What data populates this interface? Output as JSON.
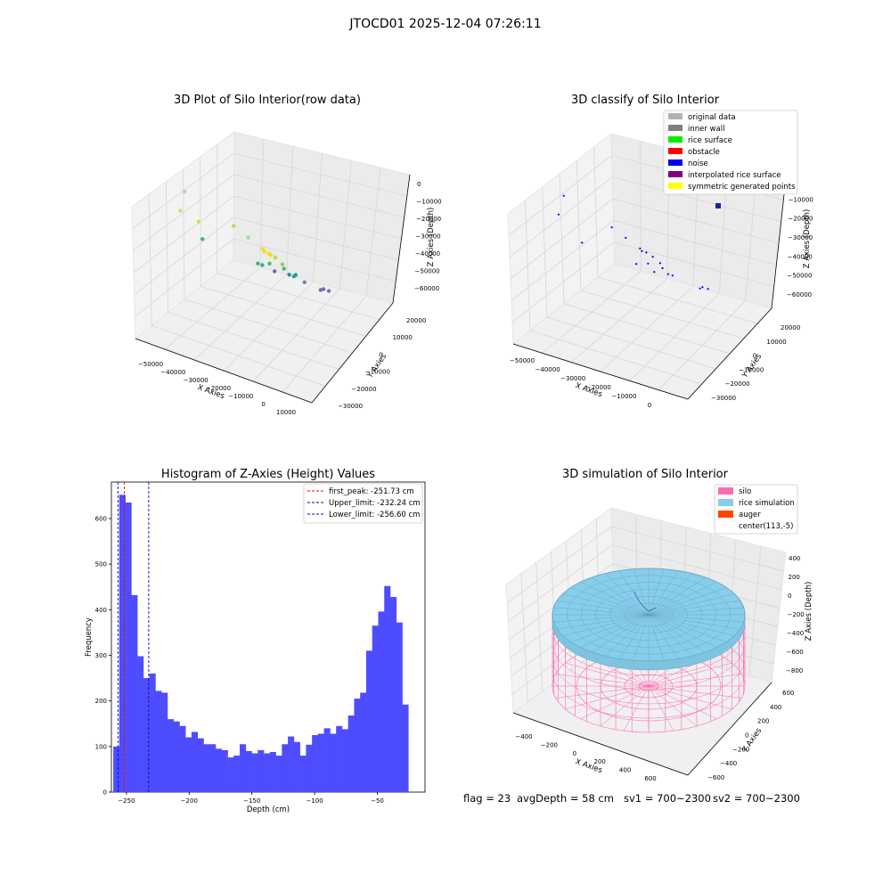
{
  "suptitle": "JTOCD01 2025-12-04 07:26:11",
  "footer": {
    "flag": "flag = 23",
    "avg_depth": "avgDepth = 58 cm",
    "sv1": "sv1 = 700~2300",
    "sv2": "sv2 = 700~2300"
  },
  "chart_data": [
    {
      "type": "scatter",
      "title": "3D Plot of Silo Interior(row data)",
      "xlabel": "X Axies",
      "ylabel": "Y Axies",
      "zlabel": "Z Axies (Depth)",
      "x_ticks": [
        "−50000",
        "−40000",
        "−30000",
        "−20000",
        "−10000",
        "0",
        "10000"
      ],
      "y_ticks": [
        "−30000",
        "−20000",
        "−10000",
        "0",
        "10000",
        "20000"
      ],
      "z_ticks": [
        "0",
        "−10000",
        "−20000",
        "−30000",
        "−40000",
        "−50000",
        "−60000"
      ],
      "colormap": "viridis",
      "points": [
        {
          "x": -52000,
          "y": 2000,
          "z": -8000,
          "color": "#a8dca0"
        },
        {
          "x": -45000,
          "y": 15000,
          "z": -5000,
          "color": "#cde35a"
        },
        {
          "x": -30000,
          "y": 8000,
          "z": -10000,
          "color": "#b5de4c"
        },
        {
          "x": -35000,
          "y": 20000,
          "z": -2000,
          "color": "#cfe23c"
        },
        {
          "x": -20000,
          "y": 15000,
          "z": -6000,
          "color": "#9fda9a"
        },
        {
          "x": -14000,
          "y": 16000,
          "z": -8000,
          "color": "#f0e21c"
        },
        {
          "x": -14000,
          "y": 15000,
          "z": -10000,
          "color": "#f5e11a"
        },
        {
          "x": -13000,
          "y": 14000,
          "z": -11000,
          "color": "#f2e51d"
        },
        {
          "x": -13000,
          "y": 13000,
          "z": -12500,
          "color": "#e8e31f"
        },
        {
          "x": -12000,
          "y": 12000,
          "z": -14000,
          "color": "#bddf26"
        },
        {
          "x": -12000,
          "y": 8000,
          "z": -20000,
          "color": "#86d549"
        },
        {
          "x": -50000,
          "y": -5000,
          "z": -35000,
          "color": "#3fb97a"
        },
        {
          "x": -25000,
          "y": 2000,
          "z": -30000,
          "color": "#3db77c"
        },
        {
          "x": -24000,
          "y": 1000,
          "z": -31000,
          "color": "#36b37d"
        },
        {
          "x": -22000,
          "y": 0,
          "z": -30000,
          "color": "#48bf70"
        },
        {
          "x": -18000,
          "y": -2000,
          "z": -32000,
          "color": "#40bb75"
        },
        {
          "x": -17000,
          "y": -6000,
          "z": -38000,
          "color": "#22a884"
        },
        {
          "x": -17000,
          "y": -7000,
          "z": -38000,
          "color": "#1f9f88"
        },
        {
          "x": -20000,
          "y": -8000,
          "z": -40000,
          "color": "#21908d"
        },
        {
          "x": -15000,
          "y": -9000,
          "z": -42000,
          "color": "#6a82b8"
        },
        {
          "x": -30000,
          "y": -15000,
          "z": -48000,
          "color": "#6e6bb0"
        },
        {
          "x": -10000,
          "y": -12000,
          "z": -45000,
          "color": "#6a6fb2"
        },
        {
          "x": -10000,
          "y": -15000,
          "z": -48000,
          "color": "#7d74b0"
        },
        {
          "x": -15000,
          "y": -18000,
          "z": -52000,
          "color": "#8a62a8"
        }
      ]
    },
    {
      "type": "scatter",
      "title": "3D classify of Silo Interior",
      "xlabel": "X Axies",
      "ylabel": "Y Axies",
      "zlabel": "Z Axies (Depth)",
      "x_ticks": [
        "−50000",
        "−40000",
        "−30000",
        "−20000",
        "−10000",
        "0"
      ],
      "y_ticks": [
        "−30000",
        "−20000",
        "−10000",
        "0",
        "10000",
        "20000"
      ],
      "z_ticks": [
        "0",
        "−10000",
        "−20000",
        "−30000",
        "−40000",
        "−50000",
        "−60000"
      ],
      "legend": [
        {
          "label": "original data",
          "color": "#b3b3b3"
        },
        {
          "label": "inner wall",
          "color": "#808080"
        },
        {
          "label": "rice surface",
          "color": "#00ee00"
        },
        {
          "label": "obstacle",
          "color": "#ff0000"
        },
        {
          "label": "noise",
          "color": "#0000ee"
        },
        {
          "label": "interpolated rice surface",
          "color": "#800080"
        },
        {
          "label": "symmetric generated points",
          "color": "#ffff00"
        }
      ],
      "points_color": "#0000ee",
      "points": [
        {
          "x": -52000,
          "y": 2000,
          "z": -8000
        },
        {
          "x": -45000,
          "y": 15000,
          "z": -5000
        },
        {
          "x": -30000,
          "y": 8000,
          "z": -10000
        },
        {
          "x": -20000,
          "y": 15000,
          "z": -6000
        },
        {
          "x": -14000,
          "y": 16000,
          "z": -8000
        },
        {
          "x": -14000,
          "y": 15000,
          "z": -10000
        },
        {
          "x": -13000,
          "y": 14000,
          "z": -11000
        },
        {
          "x": -12000,
          "y": 12000,
          "z": -14000
        },
        {
          "x": -12000,
          "y": 8000,
          "z": -20000
        },
        {
          "x": -50000,
          "y": -5000,
          "z": -35000
        },
        {
          "x": -25000,
          "y": 2000,
          "z": -30000
        },
        {
          "x": -22000,
          "y": 0,
          "z": -30000
        },
        {
          "x": -18000,
          "y": -2000,
          "z": -32000
        },
        {
          "x": -17000,
          "y": -6000,
          "z": -38000
        },
        {
          "x": -20000,
          "y": -8000,
          "z": -40000
        },
        {
          "x": -30000,
          "y": -15000,
          "z": -48000
        },
        {
          "x": -10000,
          "y": -12000,
          "z": -45000
        },
        {
          "x": -10000,
          "y": -15000,
          "z": -48000
        },
        {
          "x": -15000,
          "y": -18000,
          "z": -52000
        }
      ]
    },
    {
      "type": "bar",
      "title": "Histogram of Z-Axies (Height) Values",
      "xlabel": "Depth (cm)",
      "ylabel": "Frequency",
      "xlim": [
        -262,
        -12
      ],
      "ylim": [
        0,
        680
      ],
      "x_ticks": [
        -250,
        -200,
        -150,
        -100,
        -50
      ],
      "x_tick_labels": [
        "−250",
        "−200",
        "−150",
        "−100",
        "−50"
      ],
      "y_ticks": [
        0,
        100,
        200,
        300,
        400,
        500,
        600
      ],
      "bar_color": "#4d4dff",
      "bin_start": -260.5,
      "bin_width": 4.8,
      "values": [
        100,
        652,
        635,
        432,
        298,
        250,
        260,
        222,
        218,
        160,
        155,
        145,
        120,
        132,
        118,
        105,
        105,
        95,
        92,
        76,
        80,
        105,
        90,
        85,
        92,
        85,
        88,
        80,
        105,
        122,
        110,
        80,
        104,
        125,
        128,
        140,
        128,
        145,
        138,
        168,
        205,
        218,
        310,
        365,
        396,
        452,
        428,
        372,
        192
      ],
      "vlines": [
        {
          "label": "first_peak: -251.73 cm",
          "x": -251.73,
          "color": "#ff0000"
        },
        {
          "label": "Upper_limit: -232.24 cm",
          "x": -232.24,
          "color": "#0000cc"
        },
        {
          "label": "Lower_limit: -256.60 cm",
          "x": -256.6,
          "color": "#0000cc"
        }
      ]
    },
    {
      "type": "surface",
      "title": "3D simulation of Silo Interior",
      "xlabel": "X Axies",
      "ylabel": "Y Axies",
      "zlabel": "Z Axies (Depth)",
      "x_ticks": [
        "−400",
        "−200",
        "0",
        "200",
        "400",
        "600"
      ],
      "y_ticks": [
        "−600",
        "−400",
        "−200",
        "0",
        "200",
        "400",
        "600"
      ],
      "z_ticks": [
        "400",
        "200",
        "0",
        "−200",
        "−400",
        "−600",
        "−800"
      ],
      "legend": [
        {
          "label": "silo",
          "color": "#ff69b4"
        },
        {
          "label": "rice simulation",
          "color": "#87ceeb"
        },
        {
          "label": "auger",
          "color": "#ff4500"
        },
        {
          "label": "center(113,-5)",
          "color": "none"
        }
      ],
      "silo_color": "#ff69b4",
      "rice_color": "#87ceeb",
      "auger_color": "#ff4500"
    }
  ]
}
